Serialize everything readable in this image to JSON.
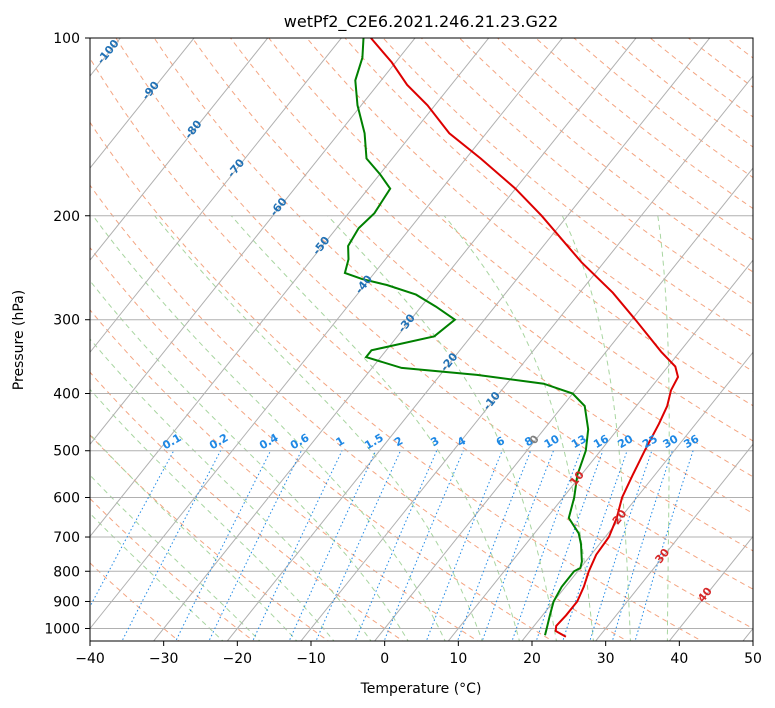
{
  "chart_data": {
    "type": "skew-t log-p",
    "title": "wetPf2_C2E6.2021.246.21.23.G22",
    "xlabel": "Temperature (°C)",
    "ylabel": "Pressure (hPa)",
    "xlim": [
      -40,
      50
    ],
    "ylim": [
      1050,
      100
    ],
    "y_scale": "log",
    "grid": true,
    "x_ticks": [
      -40,
      -30,
      -20,
      -10,
      0,
      10,
      20,
      30,
      40,
      50
    ],
    "y_ticks": [
      100,
      200,
      300,
      400,
      500,
      600,
      700,
      800,
      900,
      1000
    ],
    "x_tick_labels": [
      "−40",
      "−30",
      "−20",
      "−10",
      "0",
      "10",
      "20",
      "30",
      "40",
      "50"
    ],
    "y_tick_labels": [
      "100",
      "200",
      "300",
      "400",
      "500",
      "600",
      "700",
      "800",
      "900",
      "1000"
    ],
    "isotherm_labels": [
      "-100",
      "-90",
      "-80",
      "-70",
      "-60",
      "-50",
      "-40",
      "-30",
      "-20",
      "-10",
      "0",
      "10",
      "20",
      "30",
      "40"
    ],
    "isotherm_values": [
      -100,
      -90,
      -80,
      -70,
      -60,
      -50,
      -40,
      -30,
      -20,
      -10,
      0,
      10,
      20,
      30,
      40
    ],
    "mixing_ratio_labels": [
      "0.1",
      "0.2",
      "0.4",
      "0.6",
      "1",
      "1.5",
      "2",
      "3",
      "4",
      "6",
      "8",
      "10",
      "13",
      "16",
      "20",
      "25",
      "30",
      "36"
    ],
    "mixing_ratio_values": [
      0.1,
      0.2,
      0.4,
      0.6,
      1,
      1.5,
      2,
      3,
      4,
      6,
      8,
      10,
      13,
      16,
      20,
      25,
      30,
      36
    ],
    "series": [
      {
        "color": "#dd0000",
        "values": [
          {
            "p": 1033,
            "t": 25.5
          },
          {
            "p": 1010,
            "t": 23.5
          },
          {
            "p": 990,
            "t": 23
          },
          {
            "p": 950,
            "t": 23.2
          },
          {
            "p": 900,
            "t": 23.2
          },
          {
            "p": 850,
            "t": 22.5
          },
          {
            "p": 800,
            "t": 21.5
          },
          {
            "p": 750,
            "t": 20.7
          },
          {
            "p": 700,
            "t": 20.5
          },
          {
            "p": 650,
            "t": 19.5
          },
          {
            "p": 600,
            "t": 18
          },
          {
            "p": 550,
            "t": 17
          },
          {
            "p": 500,
            "t": 16
          },
          {
            "p": 450,
            "t": 15
          },
          {
            "p": 420,
            "t": 14.2
          },
          {
            "p": 395,
            "t": 13
          },
          {
            "p": 375,
            "t": 12.5
          },
          {
            "p": 360,
            "t": 11
          },
          {
            "p": 340,
            "t": 7.5
          },
          {
            "p": 300,
            "t": 0.5
          },
          {
            "p": 270,
            "t": -5.5
          },
          {
            "p": 240,
            "t": -13
          },
          {
            "p": 200,
            "t": -23.5
          },
          {
            "p": 180,
            "t": -30
          },
          {
            "p": 160,
            "t": -38
          },
          {
            "p": 145,
            "t": -45
          },
          {
            "p": 130,
            "t": -51
          },
          {
            "p": 120,
            "t": -56
          },
          {
            "p": 110,
            "t": -60.5
          },
          {
            "p": 100,
            "t": -66
          }
        ]
      },
      {
        "color": "#008000",
        "values": [
          {
            "p": 1027,
            "t": 22.5
          },
          {
            "p": 1000,
            "t": 22
          },
          {
            "p": 950,
            "t": 21
          },
          {
            "p": 900,
            "t": 20
          },
          {
            "p": 850,
            "t": 19.5
          },
          {
            "p": 800,
            "t": 19.5
          },
          {
            "p": 790,
            "t": 20
          },
          {
            "p": 770,
            "t": 19.5
          },
          {
            "p": 720,
            "t": 17.5
          },
          {
            "p": 690,
            "t": 16
          },
          {
            "p": 650,
            "t": 13
          },
          {
            "p": 600,
            "t": 11.5
          },
          {
            "p": 550,
            "t": 9.5
          },
          {
            "p": 500,
            "t": 8
          },
          {
            "p": 460,
            "t": 6
          },
          {
            "p": 420,
            "t": 3
          },
          {
            "p": 400,
            "t": 0
          },
          {
            "p": 385,
            "t": -5
          },
          {
            "p": 372,
            "t": -15
          },
          {
            "p": 362,
            "t": -26
          },
          {
            "p": 347,
            "t": -32
          },
          {
            "p": 338,
            "t": -32
          },
          {
            "p": 320,
            "t": -25
          },
          {
            "p": 300,
            "t": -24
          },
          {
            "p": 285,
            "t": -28
          },
          {
            "p": 272,
            "t": -32
          },
          {
            "p": 262,
            "t": -37
          },
          {
            "p": 256,
            "t": -41
          },
          {
            "p": 250,
            "t": -44
          },
          {
            "p": 237,
            "t": -45
          },
          {
            "p": 225,
            "t": -46.5
          },
          {
            "p": 210,
            "t": -47
          },
          {
            "p": 198,
            "t": -46.5
          },
          {
            "p": 180,
            "t": -47
          },
          {
            "p": 170,
            "t": -50
          },
          {
            "p": 160,
            "t": -53.5
          },
          {
            "p": 145,
            "t": -56.5
          },
          {
            "p": 130,
            "t": -60.5
          },
          {
            "p": 118,
            "t": -63.5
          },
          {
            "p": 108,
            "t": -65
          },
          {
            "p": 100,
            "t": -67
          }
        ]
      }
    ],
    "colors": {
      "temperature_line": "#dd0000",
      "dewpoint_line": "#008000",
      "grid": "#b0b0b0",
      "dry_adiabat": "#f4a582",
      "moist_adiabat": "#a8d5a0",
      "isotherm_label": "#2171b5",
      "mixing_ratio": "#1e88e5",
      "isotherm_label_positive": "#d62728",
      "isotherm_label_zero": "#808080"
    }
  }
}
